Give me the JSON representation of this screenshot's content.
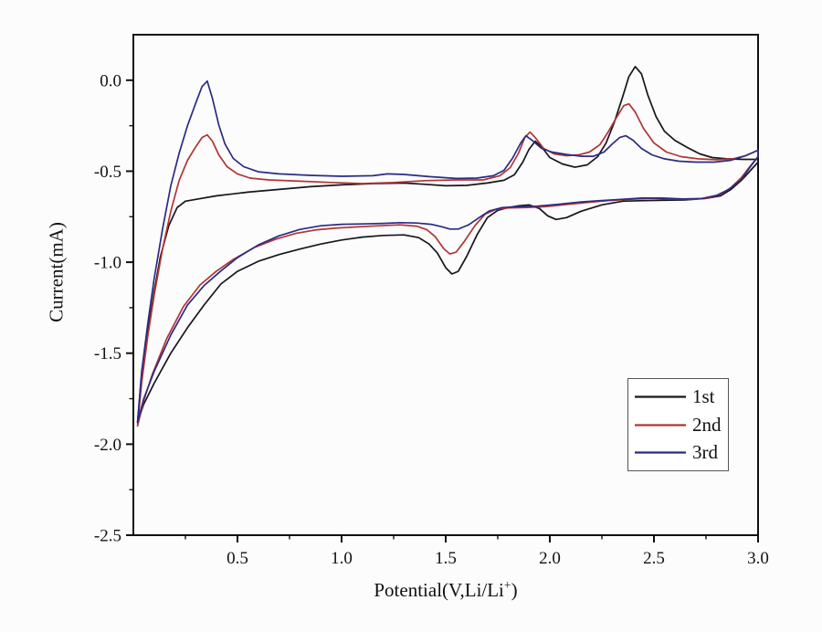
{
  "figure": {
    "background": "#fcfcfc",
    "frame_color": "#111111",
    "text_color": "#111111"
  },
  "chart_data": {
    "type": "line",
    "title": "",
    "xlabel": "Potential(V,Li/Li⁺)",
    "ylabel": "Current(mA)",
    "xlim": [
      0,
      3
    ],
    "ylim": [
      -2.5,
      0.25
    ],
    "grid": false,
    "xtick_values": [
      0.5,
      1.0,
      1.5,
      2.0,
      2.5,
      3.0
    ],
    "xtick_labels": [
      "0.5",
      "1.0",
      "1.5",
      "2.0",
      "2.5",
      "3.0"
    ],
    "ytick_values": [
      0.0,
      -0.5,
      -1.0,
      -1.5,
      -2.0,
      -2.5
    ],
    "ytick_labels": [
      "0.0",
      "-0.5",
      "-1.0",
      "-1.5",
      "-2.0",
      "-2.5"
    ],
    "minor_xtick_values": [
      0.25,
      0.75,
      1.25,
      1.75,
      2.25,
      2.75
    ],
    "minor_ytick_values": [
      -0.25,
      -0.75,
      -1.25,
      -1.75,
      -2.25
    ],
    "legend": {
      "position": "lower right",
      "entries": [
        {
          "label": "1st",
          "color": "#16161c"
        },
        {
          "label": "2nd",
          "color": "#b23434"
        },
        {
          "label": "3rd",
          "color": "#2b2b82"
        }
      ]
    },
    "series": [
      {
        "name": "1st",
        "color": "#16161c",
        "points": [
          [
            0.02,
            -1.88
          ],
          [
            0.04,
            -1.62
          ],
          [
            0.07,
            -1.38
          ],
          [
            0.1,
            -1.16
          ],
          [
            0.13,
            -0.97
          ],
          [
            0.17,
            -0.8
          ],
          [
            0.21,
            -0.7
          ],
          [
            0.25,
            -0.665
          ],
          [
            0.3,
            -0.655
          ],
          [
            0.4,
            -0.635
          ],
          [
            0.55,
            -0.615
          ],
          [
            0.7,
            -0.6
          ],
          [
            0.85,
            -0.585
          ],
          [
            1.0,
            -0.575
          ],
          [
            1.15,
            -0.568
          ],
          [
            1.3,
            -0.565
          ],
          [
            1.4,
            -0.572
          ],
          [
            1.5,
            -0.58
          ],
          [
            1.6,
            -0.578
          ],
          [
            1.7,
            -0.565
          ],
          [
            1.78,
            -0.55
          ],
          [
            1.83,
            -0.52
          ],
          [
            1.87,
            -0.45
          ],
          [
            1.9,
            -0.38
          ],
          [
            1.93,
            -0.335
          ],
          [
            1.96,
            -0.365
          ],
          [
            2.0,
            -0.425
          ],
          [
            2.06,
            -0.46
          ],
          [
            2.12,
            -0.478
          ],
          [
            2.18,
            -0.465
          ],
          [
            2.23,
            -0.42
          ],
          [
            2.27,
            -0.345
          ],
          [
            2.31,
            -0.23
          ],
          [
            2.35,
            -0.09
          ],
          [
            2.38,
            0.02
          ],
          [
            2.41,
            0.075
          ],
          [
            2.44,
            0.035
          ],
          [
            2.47,
            -0.08
          ],
          [
            2.51,
            -0.2
          ],
          [
            2.55,
            -0.28
          ],
          [
            2.6,
            -0.33
          ],
          [
            2.66,
            -0.37
          ],
          [
            2.72,
            -0.405
          ],
          [
            2.78,
            -0.425
          ],
          [
            2.85,
            -0.432
          ],
          [
            2.93,
            -0.435
          ],
          [
            3.0,
            -0.435
          ],
          [
            3.0,
            -0.45
          ],
          [
            2.96,
            -0.5
          ],
          [
            2.92,
            -0.55
          ],
          [
            2.87,
            -0.6
          ],
          [
            2.82,
            -0.635
          ],
          [
            2.75,
            -0.65
          ],
          [
            2.65,
            -0.658
          ],
          [
            2.55,
            -0.66
          ],
          [
            2.45,
            -0.662
          ],
          [
            2.35,
            -0.665
          ],
          [
            2.25,
            -0.685
          ],
          [
            2.15,
            -0.72
          ],
          [
            2.08,
            -0.755
          ],
          [
            2.03,
            -0.765
          ],
          [
            1.99,
            -0.745
          ],
          [
            1.95,
            -0.705
          ],
          [
            1.9,
            -0.685
          ],
          [
            1.85,
            -0.69
          ],
          [
            1.8,
            -0.7
          ],
          [
            1.75,
            -0.715
          ],
          [
            1.7,
            -0.755
          ],
          [
            1.65,
            -0.85
          ],
          [
            1.6,
            -0.97
          ],
          [
            1.56,
            -1.05
          ],
          [
            1.53,
            -1.065
          ],
          [
            1.5,
            -1.03
          ],
          [
            1.46,
            -0.95
          ],
          [
            1.42,
            -0.9
          ],
          [
            1.37,
            -0.865
          ],
          [
            1.3,
            -0.85
          ],
          [
            1.2,
            -0.853
          ],
          [
            1.1,
            -0.862
          ],
          [
            1.0,
            -0.878
          ],
          [
            0.9,
            -0.9
          ],
          [
            0.8,
            -0.928
          ],
          [
            0.7,
            -0.958
          ],
          [
            0.6,
            -0.995
          ],
          [
            0.5,
            -1.05
          ],
          [
            0.42,
            -1.12
          ],
          [
            0.34,
            -1.235
          ],
          [
            0.26,
            -1.36
          ],
          [
            0.18,
            -1.5
          ],
          [
            0.1,
            -1.665
          ],
          [
            0.05,
            -1.78
          ],
          [
            0.02,
            -1.88
          ]
        ]
      },
      {
        "name": "2nd",
        "color": "#b23434",
        "points": [
          [
            0.02,
            -1.9
          ],
          [
            0.04,
            -1.66
          ],
          [
            0.07,
            -1.4
          ],
          [
            0.1,
            -1.18
          ],
          [
            0.14,
            -0.93
          ],
          [
            0.18,
            -0.72
          ],
          [
            0.22,
            -0.55
          ],
          [
            0.26,
            -0.44
          ],
          [
            0.3,
            -0.365
          ],
          [
            0.33,
            -0.315
          ],
          [
            0.355,
            -0.3
          ],
          [
            0.38,
            -0.335
          ],
          [
            0.41,
            -0.41
          ],
          [
            0.45,
            -0.475
          ],
          [
            0.5,
            -0.515
          ],
          [
            0.56,
            -0.538
          ],
          [
            0.65,
            -0.548
          ],
          [
            0.8,
            -0.555
          ],
          [
            0.95,
            -0.562
          ],
          [
            1.1,
            -0.568
          ],
          [
            1.25,
            -0.562
          ],
          [
            1.4,
            -0.552
          ],
          [
            1.55,
            -0.548
          ],
          [
            1.68,
            -0.548
          ],
          [
            1.76,
            -0.525
          ],
          [
            1.81,
            -0.48
          ],
          [
            1.85,
            -0.4
          ],
          [
            1.88,
            -0.315
          ],
          [
            1.905,
            -0.285
          ],
          [
            1.93,
            -0.315
          ],
          [
            1.97,
            -0.375
          ],
          [
            2.02,
            -0.405
          ],
          [
            2.08,
            -0.415
          ],
          [
            2.14,
            -0.41
          ],
          [
            2.19,
            -0.395
          ],
          [
            2.24,
            -0.355
          ],
          [
            2.28,
            -0.285
          ],
          [
            2.32,
            -0.205
          ],
          [
            2.355,
            -0.14
          ],
          [
            2.38,
            -0.13
          ],
          [
            2.41,
            -0.175
          ],
          [
            2.45,
            -0.265
          ],
          [
            2.5,
            -0.345
          ],
          [
            2.56,
            -0.395
          ],
          [
            2.63,
            -0.42
          ],
          [
            2.71,
            -0.432
          ],
          [
            2.8,
            -0.437
          ],
          [
            2.88,
            -0.432
          ],
          [
            2.94,
            -0.415
          ],
          [
            3.0,
            -0.385
          ],
          [
            3.0,
            -0.42
          ],
          [
            2.96,
            -0.475
          ],
          [
            2.92,
            -0.535
          ],
          [
            2.87,
            -0.59
          ],
          [
            2.82,
            -0.627
          ],
          [
            2.76,
            -0.648
          ],
          [
            2.68,
            -0.655
          ],
          [
            2.58,
            -0.653
          ],
          [
            2.48,
            -0.65
          ],
          [
            2.38,
            -0.655
          ],
          [
            2.28,
            -0.662
          ],
          [
            2.18,
            -0.672
          ],
          [
            2.08,
            -0.683
          ],
          [
            1.98,
            -0.695
          ],
          [
            1.88,
            -0.7
          ],
          [
            1.8,
            -0.702
          ],
          [
            1.74,
            -0.71
          ],
          [
            1.69,
            -0.735
          ],
          [
            1.64,
            -0.8
          ],
          [
            1.59,
            -0.885
          ],
          [
            1.55,
            -0.945
          ],
          [
            1.52,
            -0.955
          ],
          [
            1.49,
            -0.925
          ],
          [
            1.45,
            -0.86
          ],
          [
            1.41,
            -0.822
          ],
          [
            1.36,
            -0.802
          ],
          [
            1.28,
            -0.795
          ],
          [
            1.18,
            -0.8
          ],
          [
            1.08,
            -0.806
          ],
          [
            0.98,
            -0.812
          ],
          [
            0.88,
            -0.822
          ],
          [
            0.78,
            -0.842
          ],
          [
            0.68,
            -0.875
          ],
          [
            0.58,
            -0.92
          ],
          [
            0.48,
            -0.985
          ],
          [
            0.4,
            -1.048
          ],
          [
            0.32,
            -1.125
          ],
          [
            0.24,
            -1.245
          ],
          [
            0.16,
            -1.42
          ],
          [
            0.09,
            -1.62
          ],
          [
            0.05,
            -1.76
          ],
          [
            0.02,
            -1.9
          ]
        ]
      },
      {
        "name": "3rd",
        "color": "#2b2b82",
        "points": [
          [
            0.02,
            -1.88
          ],
          [
            0.04,
            -1.6
          ],
          [
            0.07,
            -1.33
          ],
          [
            0.1,
            -1.09
          ],
          [
            0.14,
            -0.82
          ],
          [
            0.18,
            -0.58
          ],
          [
            0.22,
            -0.4
          ],
          [
            0.26,
            -0.25
          ],
          [
            0.3,
            -0.125
          ],
          [
            0.33,
            -0.035
          ],
          [
            0.355,
            -0.005
          ],
          [
            0.38,
            -0.1
          ],
          [
            0.41,
            -0.245
          ],
          [
            0.44,
            -0.35
          ],
          [
            0.48,
            -0.43
          ],
          [
            0.53,
            -0.475
          ],
          [
            0.6,
            -0.503
          ],
          [
            0.7,
            -0.515
          ],
          [
            0.85,
            -0.523
          ],
          [
            1.0,
            -0.528
          ],
          [
            1.15,
            -0.525
          ],
          [
            1.22,
            -0.515
          ],
          [
            1.3,
            -0.518
          ],
          [
            1.42,
            -0.53
          ],
          [
            1.55,
            -0.54
          ],
          [
            1.65,
            -0.538
          ],
          [
            1.73,
            -0.525
          ],
          [
            1.78,
            -0.495
          ],
          [
            1.82,
            -0.43
          ],
          [
            1.86,
            -0.345
          ],
          [
            1.885,
            -0.305
          ],
          [
            1.92,
            -0.335
          ],
          [
            1.96,
            -0.375
          ],
          [
            2.01,
            -0.395
          ],
          [
            2.08,
            -0.408
          ],
          [
            2.15,
            -0.418
          ],
          [
            2.21,
            -0.418
          ],
          [
            2.26,
            -0.395
          ],
          [
            2.3,
            -0.35
          ],
          [
            2.335,
            -0.315
          ],
          [
            2.365,
            -0.305
          ],
          [
            2.4,
            -0.33
          ],
          [
            2.44,
            -0.375
          ],
          [
            2.49,
            -0.41
          ],
          [
            2.55,
            -0.432
          ],
          [
            2.62,
            -0.445
          ],
          [
            2.7,
            -0.45
          ],
          [
            2.79,
            -0.45
          ],
          [
            2.87,
            -0.44
          ],
          [
            2.94,
            -0.415
          ],
          [
            3.0,
            -0.385
          ],
          [
            3.0,
            -0.42
          ],
          [
            2.96,
            -0.48
          ],
          [
            2.92,
            -0.545
          ],
          [
            2.86,
            -0.6
          ],
          [
            2.8,
            -0.633
          ],
          [
            2.73,
            -0.65
          ],
          [
            2.64,
            -0.653
          ],
          [
            2.54,
            -0.648
          ],
          [
            2.44,
            -0.648
          ],
          [
            2.34,
            -0.655
          ],
          [
            2.24,
            -0.662
          ],
          [
            2.14,
            -0.67
          ],
          [
            2.04,
            -0.682
          ],
          [
            1.94,
            -0.692
          ],
          [
            1.84,
            -0.695
          ],
          [
            1.77,
            -0.7
          ],
          [
            1.71,
            -0.718
          ],
          [
            1.66,
            -0.755
          ],
          [
            1.61,
            -0.795
          ],
          [
            1.56,
            -0.818
          ],
          [
            1.52,
            -0.818
          ],
          [
            1.48,
            -0.805
          ],
          [
            1.43,
            -0.792
          ],
          [
            1.36,
            -0.785
          ],
          [
            1.28,
            -0.783
          ],
          [
            1.2,
            -0.787
          ],
          [
            1.1,
            -0.79
          ],
          [
            1.0,
            -0.792
          ],
          [
            0.9,
            -0.8
          ],
          [
            0.8,
            -0.82
          ],
          [
            0.7,
            -0.855
          ],
          [
            0.6,
            -0.905
          ],
          [
            0.5,
            -0.975
          ],
          [
            0.42,
            -1.048
          ],
          [
            0.34,
            -1.128
          ],
          [
            0.26,
            -1.235
          ],
          [
            0.18,
            -1.4
          ],
          [
            0.1,
            -1.6
          ],
          [
            0.05,
            -1.75
          ],
          [
            0.02,
            -1.88
          ]
        ]
      }
    ]
  }
}
